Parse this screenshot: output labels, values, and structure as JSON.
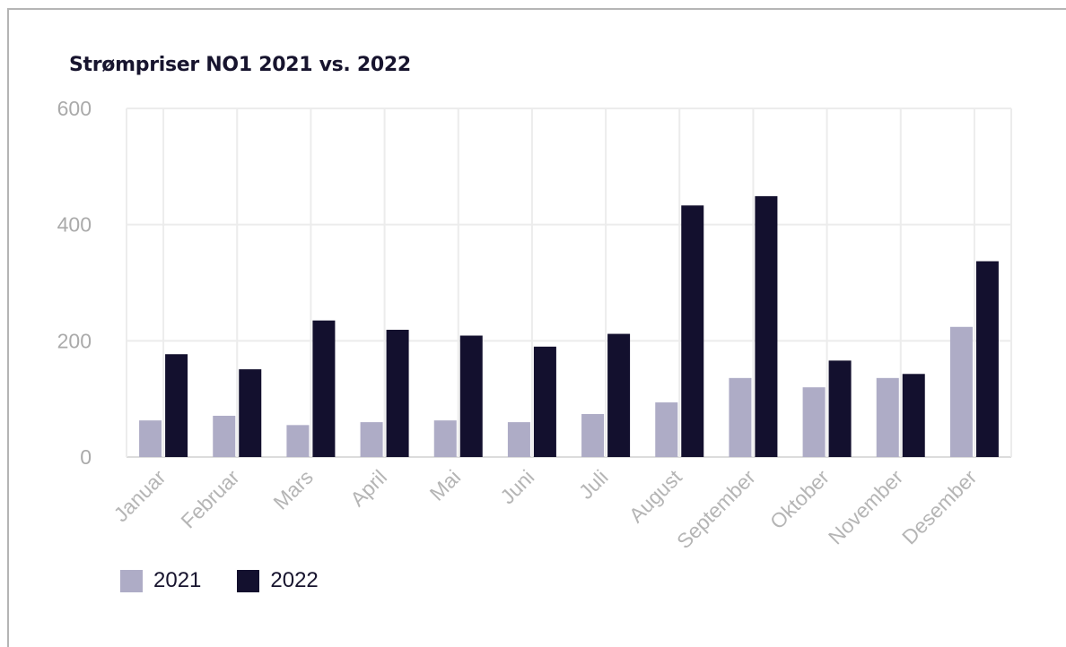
{
  "chart_data": {
    "type": "bar",
    "title": "Strømpriser NO1 2021 vs. 2022",
    "categories": [
      "Januar",
      "Februar",
      "Mars",
      "April",
      "Mai",
      "Juni",
      "Juli",
      "August",
      "September",
      "Oktober",
      "November",
      "Desember"
    ],
    "series": [
      {
        "name": "2021",
        "color": "#aeacc6",
        "values": [
          63,
          71,
          55,
          60,
          63,
          60,
          74,
          94,
          136,
          120,
          136,
          224
        ]
      },
      {
        "name": "2022",
        "color": "#13102e",
        "values": [
          177,
          151,
          235,
          219,
          209,
          190,
          212,
          433,
          449,
          166,
          143,
          337
        ]
      }
    ],
    "ylim": [
      0,
      600
    ],
    "yticks": [
      "0",
      "200",
      "400",
      "600"
    ],
    "grid": true,
    "legend": "bottom-left"
  }
}
